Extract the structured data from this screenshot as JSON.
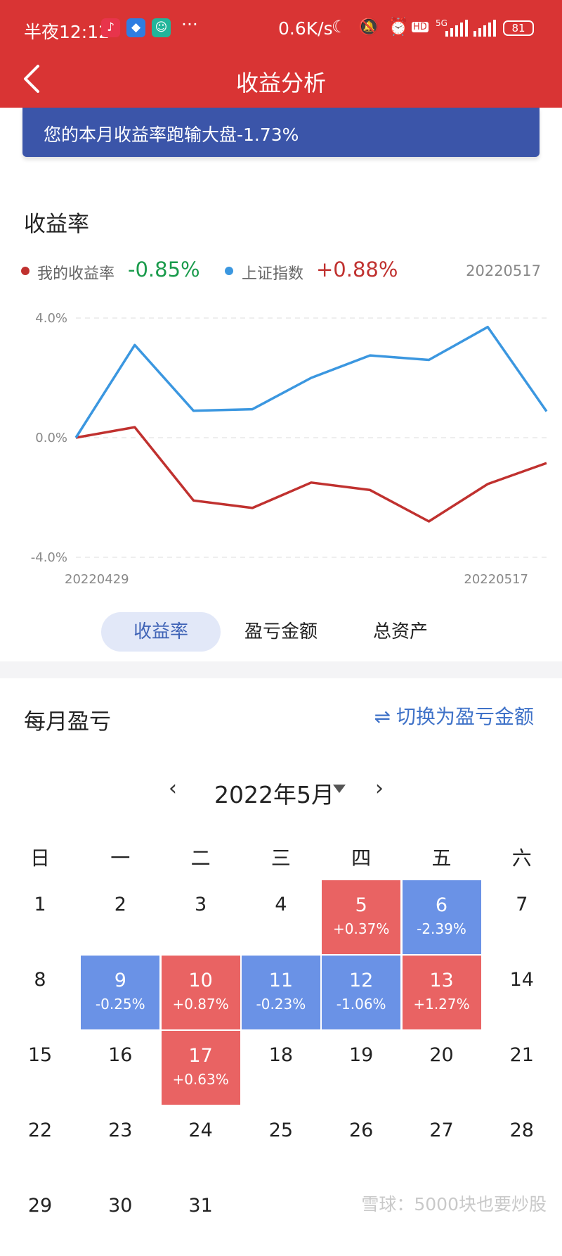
{
  "status_bar": {
    "time": "半夜12:12",
    "dots": "···",
    "net_speed": "0.6K/s",
    "network": "5G",
    "battery": "81"
  },
  "header": {
    "title": "收益分析",
    "back_icon": "chevron-left-icon"
  },
  "banner": {
    "text": "您的本月收益率跑输大盘-1.73%"
  },
  "chart_section": {
    "title": "收益率",
    "legend": [
      {
        "label": "我的收益率",
        "value": "-0.85%",
        "dot_color": "#c0312f",
        "value_color": "#1a9b4c"
      },
      {
        "label": "上证指数",
        "value": "+0.88%",
        "dot_color": "#3b97e0",
        "value_color": "#c0312f"
      }
    ],
    "date": "20220517"
  },
  "chart_data": {
    "type": "line",
    "y_ticks": [
      "4.0%",
      "0.0%",
      "-4.0%"
    ],
    "x_tick_labels": [
      "20220429",
      "20220517"
    ],
    "ylim": [
      -4.0,
      4.0
    ],
    "series": [
      {
        "name": "我的收益率",
        "color": "#c0312f",
        "values": [
          0.0,
          0.35,
          -2.1,
          -2.35,
          -1.5,
          -1.75,
          -2.8,
          -1.55,
          -0.85
        ]
      },
      {
        "name": "上证指数",
        "color": "#3b97e0",
        "values": [
          0.0,
          3.1,
          0.9,
          0.95,
          2.0,
          2.75,
          2.6,
          3.7,
          0.88
        ]
      }
    ]
  },
  "tabs": [
    "收益率",
    "盈亏金额",
    "总资产"
  ],
  "monthly": {
    "title": "每月盈亏",
    "switch_label": "切换为盈亏金额",
    "switch_icon": "⇌",
    "month": "2022年5月",
    "prev": "‹",
    "next": "›",
    "weekdays": [
      "日",
      "一",
      "二",
      "三",
      "四",
      "五",
      "六"
    ],
    "days": [
      {
        "d": "1"
      },
      {
        "d": "2"
      },
      {
        "d": "3"
      },
      {
        "d": "4"
      },
      {
        "d": "5",
        "p": "+0.37%",
        "t": "up"
      },
      {
        "d": "6",
        "p": "-2.39%",
        "t": "down"
      },
      {
        "d": "7"
      },
      {
        "d": "8"
      },
      {
        "d": "9",
        "p": "-0.25%",
        "t": "down"
      },
      {
        "d": "10",
        "p": "+0.87%",
        "t": "up"
      },
      {
        "d": "11",
        "p": "-0.23%",
        "t": "down"
      },
      {
        "d": "12",
        "p": "-1.06%",
        "t": "down"
      },
      {
        "d": "13",
        "p": "+1.27%",
        "t": "up"
      },
      {
        "d": "14"
      },
      {
        "d": "15"
      },
      {
        "d": "16"
      },
      {
        "d": "17",
        "p": "+0.63%",
        "t": "up"
      },
      {
        "d": "18"
      },
      {
        "d": "19"
      },
      {
        "d": "20"
      },
      {
        "d": "21"
      },
      {
        "d": "22"
      },
      {
        "d": "23"
      },
      {
        "d": "24"
      },
      {
        "d": "25"
      },
      {
        "d": "26"
      },
      {
        "d": "27"
      },
      {
        "d": "28"
      },
      {
        "d": "29"
      },
      {
        "d": "30"
      },
      {
        "d": "31"
      }
    ]
  },
  "watermark": "雪球：5000块也要炒股"
}
